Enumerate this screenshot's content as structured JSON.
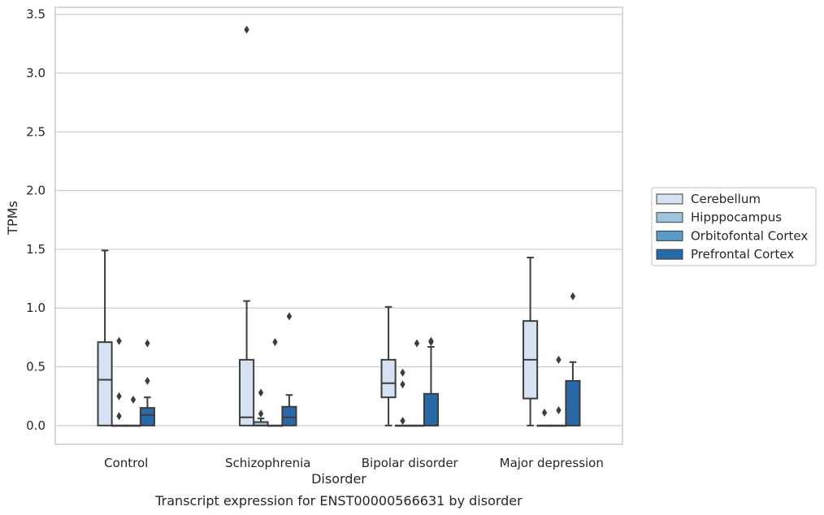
{
  "chart_data": {
    "type": "box",
    "title": "",
    "caption": "Transcript expression for ENST00000566631 by disorder",
    "xlabel": "Disorder",
    "ylabel": "TPMs",
    "ylim": [
      -0.16,
      3.56
    ],
    "yticks": [
      "0.0",
      "0.5",
      "1.0",
      "1.5",
      "2.0",
      "2.5",
      "3.0",
      "3.5"
    ],
    "grid": "horizontal",
    "legend_position": "right",
    "categories": [
      "Control",
      "Schizophrenia",
      "Bipolar disorder",
      "Major depression"
    ],
    "series": [
      {
        "name": "Cerebellum",
        "color": "#d4e2f2",
        "boxes": [
          {
            "min": 0.0,
            "q1": 0.0,
            "median": 0.39,
            "q3": 0.71,
            "max": 1.49,
            "outliers": []
          },
          {
            "min": 0.0,
            "q1": 0.0,
            "median": 0.07,
            "q3": 0.56,
            "max": 1.06,
            "outliers": [
              3.37
            ]
          },
          {
            "min": 0.0,
            "q1": 0.24,
            "median": 0.36,
            "q3": 0.56,
            "max": 1.01,
            "outliers": []
          },
          {
            "min": 0.0,
            "q1": 0.23,
            "median": 0.56,
            "q3": 0.89,
            "max": 1.43,
            "outliers": []
          }
        ]
      },
      {
        "name": "Hipppocampus",
        "color": "#9fc5de",
        "boxes": [
          {
            "min": 0.0,
            "q1": 0.0,
            "median": 0.0,
            "q3": 0.0,
            "max": 0.0,
            "outliers": [
              0.72,
              0.25,
              0.08
            ]
          },
          {
            "min": 0.0,
            "q1": 0.0,
            "median": 0.0,
            "q3": 0.03,
            "max": 0.06,
            "outliers": [
              0.28,
              0.1
            ]
          },
          {
            "min": 0.0,
            "q1": 0.0,
            "median": 0.0,
            "q3": 0.0,
            "max": 0.0,
            "outliers": [
              0.45,
              0.35,
              0.04
            ]
          },
          {
            "min": 0.0,
            "q1": 0.0,
            "median": 0.0,
            "q3": 0.0,
            "max": 0.0,
            "outliers": [
              0.11
            ]
          }
        ]
      },
      {
        "name": "Orbitofontal Cortex",
        "color": "#5a9ac8",
        "boxes": [
          {
            "min": 0.0,
            "q1": 0.0,
            "median": 0.0,
            "q3": 0.0,
            "max": 0.0,
            "outliers": [
              0.22
            ]
          },
          {
            "min": 0.0,
            "q1": 0.0,
            "median": 0.0,
            "q3": 0.0,
            "max": 0.0,
            "outliers": [
              0.71
            ]
          },
          {
            "min": 0.0,
            "q1": 0.0,
            "median": 0.0,
            "q3": 0.0,
            "max": 0.0,
            "outliers": [
              0.7
            ]
          },
          {
            "min": 0.0,
            "q1": 0.0,
            "median": 0.0,
            "q3": 0.0,
            "max": 0.0,
            "outliers": [
              0.56,
              0.13
            ]
          }
        ]
      },
      {
        "name": "Prefrontal Cortex",
        "color": "#2a69a8",
        "boxes": [
          {
            "min": 0.0,
            "q1": 0.0,
            "median": 0.09,
            "q3": 0.15,
            "max": 0.24,
            "outliers": [
              0.7,
              0.38
            ]
          },
          {
            "min": 0.0,
            "q1": 0.0,
            "median": 0.07,
            "q3": 0.16,
            "max": 0.26,
            "outliers": [
              0.93
            ]
          },
          {
            "min": 0.0,
            "q1": 0.0,
            "median": 0.0,
            "q3": 0.27,
            "max": 0.67,
            "outliers": [
              0.72,
              0.71
            ]
          },
          {
            "min": 0.0,
            "q1": 0.0,
            "median": 0.0,
            "q3": 0.38,
            "max": 0.54,
            "outliers": [
              1.1
            ]
          }
        ]
      }
    ]
  }
}
